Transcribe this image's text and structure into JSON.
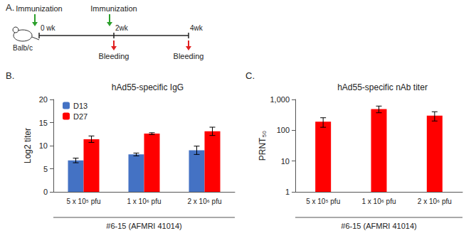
{
  "diagram": {
    "label": "A.",
    "subject": "Balb/c",
    "timeline": [
      {
        "time": "0 wk",
        "above": "Immunization"
      },
      {
        "time": "2wk",
        "above": "Immunization",
        "below": "Bleeding"
      },
      {
        "time": "4wk",
        "below": "Bleeding"
      }
    ]
  },
  "chart_data": [
    {
      "type": "bar",
      "title": "hAd55-specific IgG",
      "annotations": [
        "B.",
        "#6-15 (AFMRI 41014)"
      ],
      "ylabel": "Log2 titer",
      "categories": [
        "5 x 10⁵ pfu",
        "1 x 10⁶ pfu",
        "2 x 10⁶ pfu"
      ],
      "series": [
        {
          "name": "D13",
          "color": "#4472c4",
          "values": [
            6.8,
            8.1,
            9.0
          ],
          "errors": [
            0.5,
            0.3,
            0.9
          ]
        },
        {
          "name": "D27",
          "color": "#ff0000",
          "values": [
            11.4,
            12.6,
            13.1
          ],
          "errors": [
            0.7,
            0.2,
            0.9
          ]
        }
      ],
      "ylim": [
        0,
        20
      ],
      "yticks": [
        0,
        5,
        10,
        15,
        20
      ],
      "legend": "upper left",
      "grid": false
    },
    {
      "type": "bar",
      "title": "hAd55-specific nAb titer",
      "annotations": [
        "C.",
        "#6-15 (AFMRI 41014)"
      ],
      "ylabel": "PRNT₅₀",
      "categories": [
        "5 x 10⁵ pfu",
        "1 x 10⁶ pfu",
        "2 x 10⁶ pfu"
      ],
      "values": [
        190,
        490,
        300
      ],
      "errors": [
        65,
        120,
        100
      ],
      "color": "#ff0000",
      "ylim": [
        1,
        1000
      ],
      "yticks": [
        1,
        10,
        100,
        {
          "value": 1000,
          "label": "1,000"
        }
      ],
      "log": "y",
      "grid": false
    }
  ]
}
